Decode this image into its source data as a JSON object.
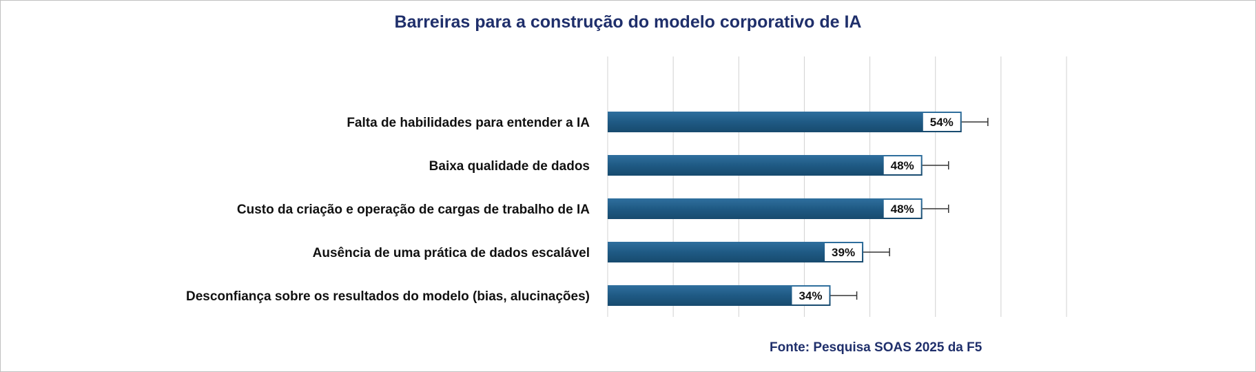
{
  "chart_data": {
    "type": "bar",
    "orientation": "horizontal",
    "title": "Barreiras para a construção do modelo corporativo de IA",
    "source": "Fonte: Pesquisa SOAS 2025 da F5",
    "categories": [
      "Falta de habilidades para entender a IA",
      "Baixa qualidade de dados",
      "Custo da criação e operação de cargas de trabalho de IA",
      "Ausência de uma prática de dados escalável",
      "Desconfiança sobre os resultados do modelo (bias, alucinações)"
    ],
    "values": [
      54,
      48,
      48,
      39,
      34
    ],
    "value_labels": [
      "54%",
      "48%",
      "48%",
      "39%",
      "34%"
    ],
    "error_upper": [
      58,
      52,
      52,
      43,
      38
    ],
    "xlim": [
      0,
      70
    ],
    "grid": true,
    "colors": {
      "bar": "#1f5a84",
      "bar_light": "#2f6f9e",
      "grid": "#d0d0d0",
      "title": "#1f2f6b"
    }
  }
}
